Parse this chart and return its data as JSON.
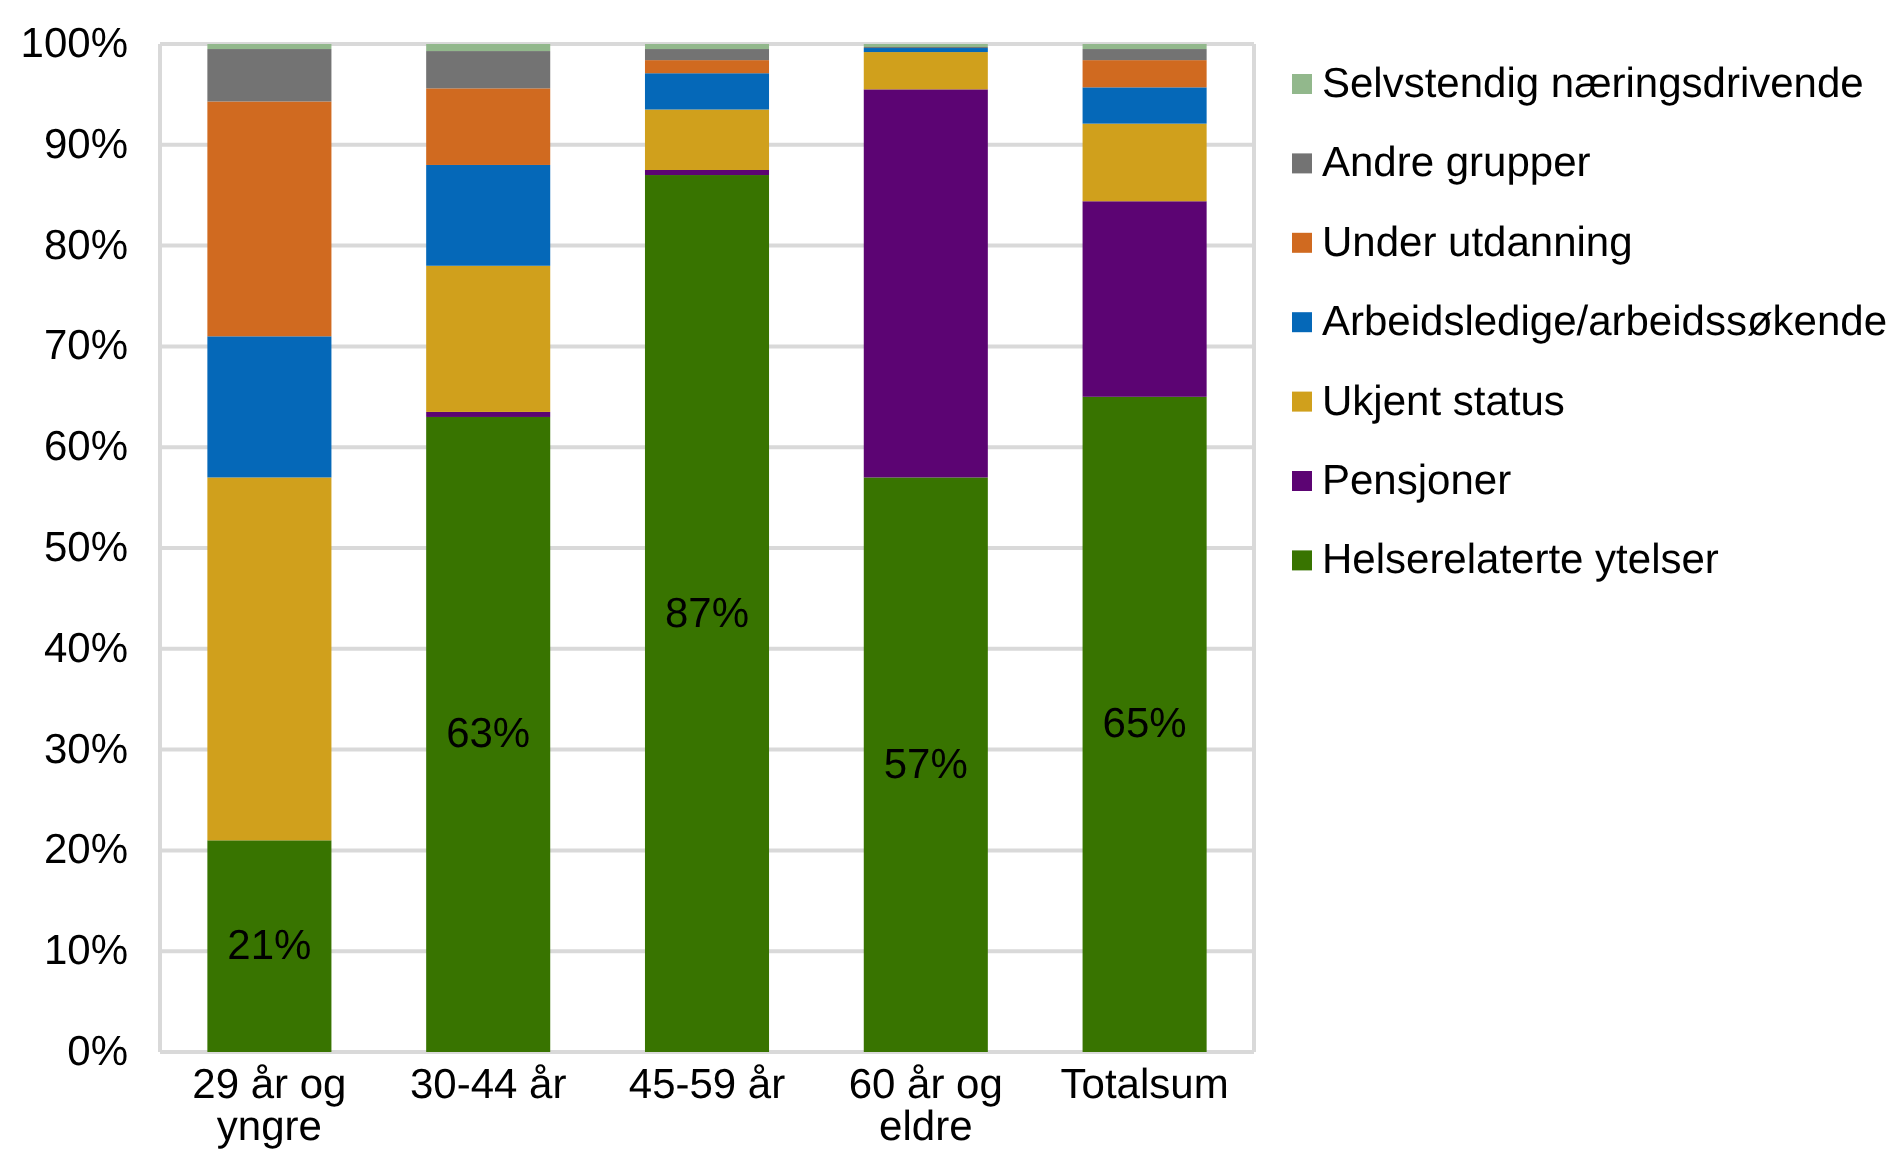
{
  "chart_data": {
    "type": "bar",
    "stacked": true,
    "categories": [
      "29 år og yngre",
      "30-44 år",
      "45-59 år",
      "60 år og eldre",
      "Totalsum"
    ],
    "series": [
      {
        "name": "Helserelaterte ytelser",
        "color": "#387400",
        "values": [
          21,
          63,
          87,
          57,
          65
        ],
        "value_labels": [
          "21%",
          "63%",
          "87%",
          "57%",
          "65%"
        ]
      },
      {
        "name": "Pensjoner",
        "color": "#5c0473",
        "values": [
          0,
          0.5,
          0.5,
          38.5,
          19.4
        ]
      },
      {
        "name": "Ukjent status",
        "color": "#d0a01c",
        "values": [
          36,
          14.5,
          6.0,
          3.7,
          7.7
        ]
      },
      {
        "name": "Arbeidsledige/arbeidssøkende",
        "color": "#0568b8",
        "values": [
          14,
          10,
          3.6,
          0.4,
          3.6
        ]
      },
      {
        "name": "Under utdanning",
        "color": "#d06a20",
        "values": [
          23.3,
          7.6,
          1.3,
          0,
          2.7
        ]
      },
      {
        "name": "Andre grupper",
        "color": "#737373",
        "values": [
          5.2,
          3.7,
          1.1,
          0.1,
          1.1
        ]
      },
      {
        "name": "Selvstendig næringsdrivende",
        "color": "#92b88c",
        "values": [
          0.5,
          0.7,
          0.5,
          0.3,
          0.5
        ]
      }
    ],
    "ylim": [
      0,
      100
    ],
    "yticks": [
      {
        "value": 0,
        "label": "0%"
      },
      {
        "value": 10,
        "label": "10%"
      },
      {
        "value": 20,
        "label": "20%"
      },
      {
        "value": 30,
        "label": "30%"
      },
      {
        "value": 40,
        "label": "40%"
      },
      {
        "value": 50,
        "label": "50%"
      },
      {
        "value": 60,
        "label": "60%"
      },
      {
        "value": 70,
        "label": "70%"
      },
      {
        "value": 80,
        "label": "80%"
      },
      {
        "value": 90,
        "label": "90%"
      },
      {
        "value": 100,
        "label": "100%"
      }
    ],
    "grid": "y",
    "legend": "right"
  }
}
